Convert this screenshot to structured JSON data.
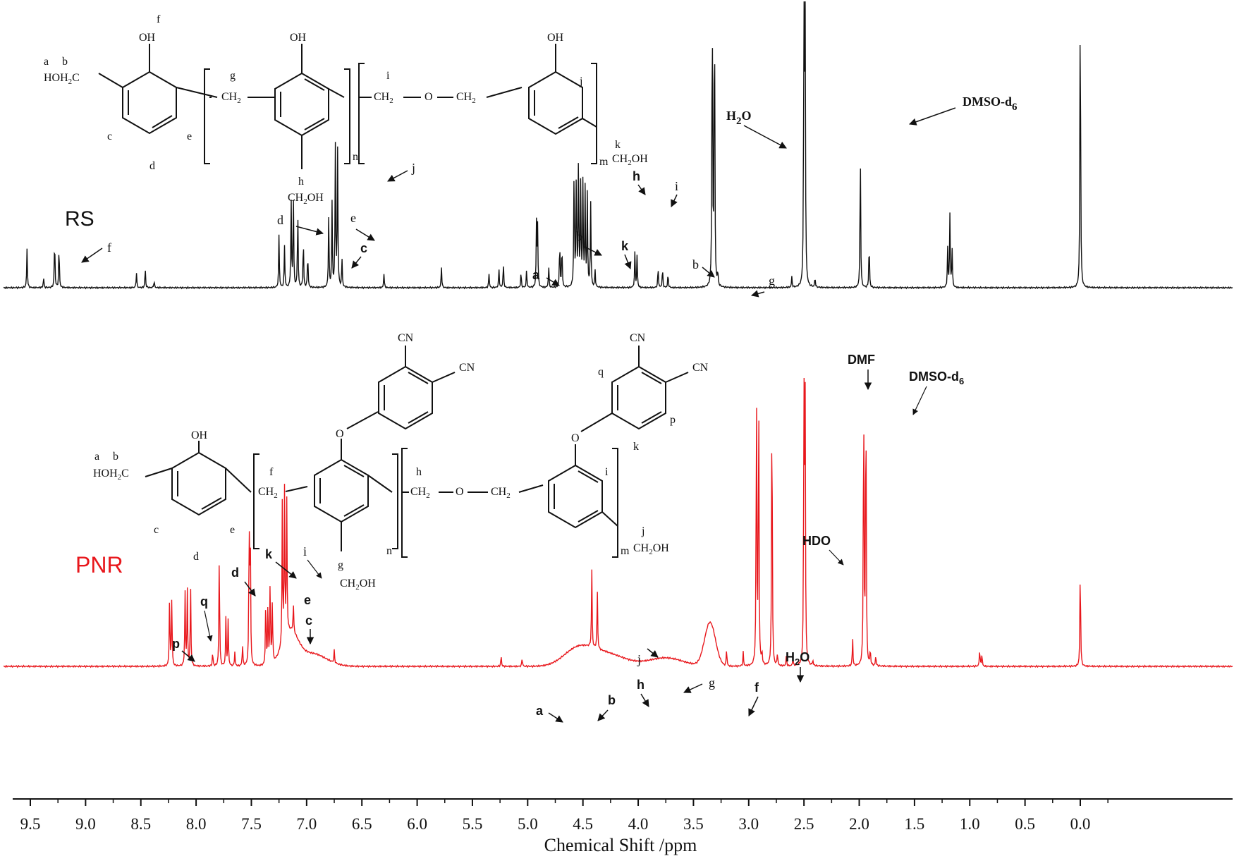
{
  "chart_data": {
    "type": "line",
    "xlabel": "Chemical Shift /ppm",
    "xlim": [
      9.85,
      -0.35
    ],
    "x_reversed": true,
    "tick_labels": [
      "9.5",
      "9.0",
      "8.5",
      "8.0",
      "7.5",
      "7.0",
      "6.5",
      "6.0",
      "5.5",
      "5.0",
      "4.5",
      "4.0",
      "3.5",
      "3.0",
      "2.5",
      "2.0",
      "1.5",
      "1.0",
      "0.5",
      "0.0"
    ],
    "tick_values": [
      9.5,
      9.0,
      8.5,
      8.0,
      7.5,
      7.0,
      6.5,
      6.0,
      5.5,
      5.0,
      4.5,
      4.0,
      3.5,
      3.0,
      2.5,
      2.0,
      1.5,
      1.0,
      0.5,
      0.0
    ],
    "series": [
      {
        "name": "RS",
        "color": "#111111",
        "peaks": [
          {
            "ppm": 9.53,
            "h": 55
          },
          {
            "ppm": 9.28,
            "h": 72
          },
          {
            "ppm": 9.24,
            "h": 60
          },
          {
            "ppm": 9.38,
            "h": 15
          },
          {
            "ppm": 8.54,
            "h": 22
          },
          {
            "ppm": 8.46,
            "h": 28
          },
          {
            "ppm": 8.38,
            "h": 10
          },
          {
            "ppm": 7.25,
            "h": 75
          },
          {
            "ppm": 7.2,
            "h": 60
          },
          {
            "ppm": 7.14,
            "h": 125
          },
          {
            "ppm": 7.12,
            "h": 130
          },
          {
            "ppm": 7.08,
            "h": 110
          },
          {
            "ppm": 7.03,
            "h": 70
          },
          {
            "ppm": 6.99,
            "h": 50
          },
          {
            "ppm": 6.8,
            "h": 100
          },
          {
            "ppm": 6.77,
            "h": 120
          },
          {
            "ppm": 6.74,
            "h": 200
          },
          {
            "ppm": 6.72,
            "h": 195
          },
          {
            "ppm": 6.68,
            "h": 40
          },
          {
            "ppm": 6.3,
            "h": 20
          },
          {
            "ppm": 5.78,
            "h": 30
          },
          {
            "ppm": 5.35,
            "h": 20
          },
          {
            "ppm": 5.26,
            "h": 28
          },
          {
            "ppm": 5.22,
            "h": 35
          },
          {
            "ppm": 5.06,
            "h": 22
          },
          {
            "ppm": 5.01,
            "h": 25
          },
          {
            "ppm": 4.92,
            "h": 90
          },
          {
            "ppm": 4.91,
            "h": 85
          },
          {
            "ppm": 4.81,
            "h": 30
          },
          {
            "ppm": 4.71,
            "h": 65
          },
          {
            "ppm": 4.69,
            "h": 60
          },
          {
            "ppm": 4.58,
            "h": 170
          },
          {
            "ppm": 4.56,
            "h": 160
          },
          {
            "ppm": 4.54,
            "h": 180
          },
          {
            "ppm": 4.52,
            "h": 150
          },
          {
            "ppm": 4.5,
            "h": 150
          },
          {
            "ppm": 4.48,
            "h": 140
          },
          {
            "ppm": 4.46,
            "h": 130
          },
          {
            "ppm": 4.43,
            "h": 120
          },
          {
            "ppm": 4.39,
            "h": 25
          },
          {
            "ppm": 4.03,
            "h": 50
          },
          {
            "ppm": 4.01,
            "h": 45
          },
          {
            "ppm": 3.82,
            "h": 30
          },
          {
            "ppm": 3.78,
            "h": 28
          },
          {
            "ppm": 3.73,
            "h": 20
          },
          {
            "ppm": 3.33,
            "h": 440
          },
          {
            "ppm": 3.31,
            "h": 440
          },
          {
            "ppm": 3.28,
            "h": 20
          },
          {
            "ppm": 2.61,
            "h": 15
          },
          {
            "ppm": 2.5,
            "h": 440
          },
          {
            "ppm": 2.49,
            "h": 440
          },
          {
            "ppm": 2.4,
            "h": 14
          },
          {
            "ppm": 1.99,
            "h": 205
          },
          {
            "ppm": 1.91,
            "h": 65
          },
          {
            "ppm": 1.18,
            "h": 105
          },
          {
            "ppm": 1.16,
            "h": 55
          },
          {
            "ppm": 1.2,
            "h": 55
          },
          {
            "ppm": 0.0,
            "h": 440
          }
        ]
      },
      {
        "name": "PNR",
        "color": "#e8171c",
        "peaks": [
          {
            "ppm": 8.24,
            "h": 98
          },
          {
            "ppm": 8.22,
            "h": 98
          },
          {
            "ppm": 8.1,
            "h": 105
          },
          {
            "ppm": 8.08,
            "h": 110
          },
          {
            "ppm": 8.05,
            "h": 115
          },
          {
            "ppm": 7.85,
            "h": 20
          },
          {
            "ppm": 7.79,
            "h": 162
          },
          {
            "ppm": 7.73,
            "h": 70
          },
          {
            "ppm": 7.71,
            "h": 65
          },
          {
            "ppm": 7.65,
            "h": 20
          },
          {
            "ppm": 7.58,
            "h": 30
          },
          {
            "ppm": 7.52,
            "h": 200
          },
          {
            "ppm": 7.51,
            "h": 190
          },
          {
            "ppm": 7.37,
            "h": 95
          },
          {
            "ppm": 7.35,
            "h": 90
          },
          {
            "ppm": 7.33,
            "h": 120
          },
          {
            "ppm": 7.31,
            "h": 90
          },
          {
            "ppm": 7.22,
            "h": 200
          },
          {
            "ppm": 7.2,
            "h": 210
          },
          {
            "ppm": 7.18,
            "h": 190
          },
          {
            "ppm": 7.12,
            "h": 40
          },
          {
            "ppm": 6.75,
            "h": 18
          },
          {
            "ppm": 5.24,
            "h": 15
          },
          {
            "ppm": 5.05,
            "h": 12
          },
          {
            "ppm": 4.42,
            "h": 110
          },
          {
            "ppm": 4.37,
            "h": 85
          },
          {
            "ppm": 3.2,
            "h": 25
          },
          {
            "ppm": 3.05,
            "h": 20
          },
          {
            "ppm": 2.93,
            "h": 410
          },
          {
            "ppm": 2.91,
            "h": 410
          },
          {
            "ppm": 2.88,
            "h": 18
          },
          {
            "ppm": 2.79,
            "h": 410
          },
          {
            "ppm": 2.74,
            "h": 18
          },
          {
            "ppm": 2.66,
            "h": 14
          },
          {
            "ppm": 2.6,
            "h": 10
          },
          {
            "ppm": 2.5,
            "h": 410
          },
          {
            "ppm": 2.49,
            "h": 410
          },
          {
            "ppm": 2.42,
            "h": 8
          },
          {
            "ppm": 2.06,
            "h": 40
          },
          {
            "ppm": 1.96,
            "h": 410
          },
          {
            "ppm": 1.94,
            "h": 410
          },
          {
            "ppm": 1.9,
            "h": 22
          },
          {
            "ppm": 1.85,
            "h": 15
          },
          {
            "ppm": 0.91,
            "h": 25
          },
          {
            "ppm": 0.89,
            "h": 18
          },
          {
            "ppm": 0.0,
            "h": 148
          }
        ],
        "humps": [
          {
            "ppm": 7.15,
            "h": 45,
            "w": 0.1
          },
          {
            "ppm": 6.95,
            "h": 18,
            "w": 0.18
          },
          {
            "ppm": 4.55,
            "h": 22,
            "w": 0.18
          },
          {
            "ppm": 4.3,
            "h": 18,
            "w": 0.25
          },
          {
            "ppm": 3.75,
            "h": 12,
            "w": 0.22
          },
          {
            "ppm": 3.35,
            "h": 62,
            "w": 0.07
          }
        ]
      }
    ],
    "annotations": {
      "rs_series_label": "RS",
      "pnr_series_label": "PNR",
      "rs_peaks": {
        "f": "f",
        "d": "d",
        "e": "e",
        "c": "c",
        "j": "j",
        "a": "a",
        "b1": "b",
        "k": "k",
        "h": "h",
        "i": "i",
        "b2": "b",
        "g": "g",
        "h2o": "H",
        "h2o_sub": "2",
        "h2o_tail": "O",
        "dmso": "DMSO-d",
        "dmso_sub": "6"
      },
      "pnr_peaks": {
        "p": "p",
        "q": "q",
        "d": "d",
        "k": "k",
        "i": "i",
        "e": "e",
        "c": "c",
        "a": "a",
        "b": "b",
        "h": "h",
        "j": "j",
        "g": "g",
        "f": "f",
        "h2o": "H",
        "h2o_sub": "2",
        "h2o_tail": "O",
        "hdo": "HDO",
        "dmf": "DMF",
        "dmso": "DMSO-d",
        "dmso_sub": "6"
      }
    },
    "structures": {
      "rs": {
        "oh1": "OH",
        "oh2": "OH",
        "oh3": "OH",
        "f": "f",
        "a": "a",
        "b": "b",
        "hoh2c": "HOH",
        "hoh2c_sub": "2",
        "hoh2c_tail": "C",
        "c": "c",
        "d": "d",
        "e": "e",
        "g": "g",
        "ch2": "CH",
        "ch2_sub": "2",
        "n": "n",
        "i": "i",
        "ch2b": "CH",
        "ch2b_sub": "2",
        "o": "O",
        "ch2c": "CH",
        "ch2c_sub": "2",
        "h": "h",
        "ch2oh": "CH",
        "ch2oh_sub": "2",
        "ch2oh_tail": "OH",
        "j": "j",
        "k": "k",
        "m": "m",
        "ch2oh2": "CH",
        "ch2oh2_sub": "2",
        "ch2oh2_tail": "OH"
      },
      "pnr": {
        "cn1": "CN",
        "cn2": "CN",
        "cn3": "CN",
        "cn4": "CN",
        "oh": "OH",
        "o1": "O",
        "o2": "O",
        "o3": "O",
        "a": "a",
        "b": "b",
        "hoh2c": "HOH",
        "hoh2c_sub": "2",
        "hoh2c_tail": "C",
        "c": "c",
        "d": "d",
        "e": "e",
        "f": "f",
        "ch2": "CH",
        "ch2_sub": "2",
        "n": "n",
        "h": "h",
        "ch2b": "CH",
        "ch2b_sub": "2",
        "ch2c": "CH",
        "ch2c_sub": "2",
        "g": "g",
        "ch2oh": "CH",
        "ch2oh_sub": "2",
        "ch2oh_tail": "OH",
        "q": "q",
        "p": "p",
        "k": "k",
        "i": "i",
        "j": "j",
        "m": "m",
        "ch2oh2": "CH",
        "ch2oh2_sub": "2",
        "ch2oh2_tail": "OH"
      }
    }
  }
}
